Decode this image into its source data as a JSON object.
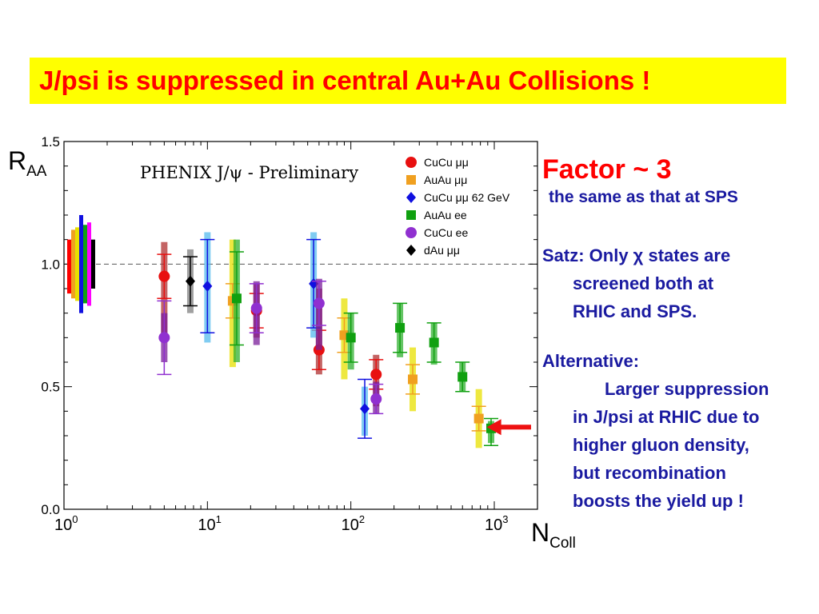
{
  "slide_title": "J/psi is suppressed in central Au+Au Collisions !",
  "panel": {
    "factor": "Factor ~ 3",
    "factor_sub": "the same as that at SPS",
    "satz_line1": "Satz: Only χ states are",
    "satz_line2": "screened both at",
    "satz_line3": "RHIC and SPS.",
    "alt_heading": "Alternative:",
    "alt_line1": "Larger suppression",
    "alt_line2": "in J/psi at RHIC due to",
    "alt_line3": "higher gluon density,",
    "alt_line4": "but recombination",
    "alt_line5": "boosts the yield up !"
  },
  "chart_data": {
    "type": "scatter",
    "title": "PHENIX J/ψ - Preliminary",
    "ylabel": "R",
    "ylabel_sub": "AA",
    "xlabel": "N",
    "xlabel_sub": "Coll",
    "xscale": "log",
    "xlim": [
      1,
      2000
    ],
    "ylim": [
      0,
      1.5
    ],
    "x_ticks": [
      {
        "value": 1,
        "base": "10",
        "exp": "0"
      },
      {
        "value": 10,
        "base": "10",
        "exp": "1"
      },
      {
        "value": 100,
        "base": "10",
        "exp": "2"
      },
      {
        "value": 1000,
        "base": "10",
        "exp": "3"
      }
    ],
    "y_ticks": [
      "0.0",
      "0.5",
      "1.0",
      "1.5"
    ],
    "y_tick_values": [
      0,
      0.5,
      1.0,
      1.5
    ],
    "reference_line": 1.0,
    "legend_position": "top-right",
    "series": [
      {
        "name": "CuCu μμ",
        "color": "#e81010",
        "marker": "circle",
        "syscolor": "#b03030",
        "points": [
          {
            "x": 5,
            "y": 0.95,
            "ylo": 0.86,
            "yhi": 1.04,
            "slo": 0.7,
            "shi": 1.09
          },
          {
            "x": 22,
            "y": 0.81,
            "ylo": 0.74,
            "yhi": 0.88,
            "slo": 0.7,
            "shi": 0.92
          },
          {
            "x": 60,
            "y": 0.65,
            "ylo": 0.57,
            "yhi": 0.73,
            "slo": 0.55,
            "shi": 0.9
          },
          {
            "x": 150,
            "y": 0.55,
            "ylo": 0.49,
            "yhi": 0.61,
            "slo": 0.42,
            "shi": 0.63
          }
        ]
      },
      {
        "name": "AuAu μμ",
        "color": "#f0a020",
        "marker": "square",
        "syscolor": "#e8e000",
        "points": [
          {
            "x": 15,
            "y": 0.85,
            "ylo": 0.78,
            "yhi": 0.92,
            "slo": 0.58,
            "shi": 1.1
          },
          {
            "x": 90,
            "y": 0.71,
            "ylo": 0.64,
            "yhi": 0.78,
            "slo": 0.53,
            "shi": 0.86
          },
          {
            "x": 270,
            "y": 0.53,
            "ylo": 0.47,
            "yhi": 0.59,
            "slo": 0.4,
            "shi": 0.66
          },
          {
            "x": 780,
            "y": 0.37,
            "ylo": 0.32,
            "yhi": 0.42,
            "slo": 0.25,
            "shi": 0.49
          }
        ]
      },
      {
        "name": "CuCu μμ 62 GeV",
        "color": "#1010e0",
        "marker": "diamond",
        "syscolor": "#55bbee",
        "points": [
          {
            "x": 10,
            "y": 0.91,
            "ylo": 0.72,
            "yhi": 1.1,
            "slo": 0.68,
            "shi": 1.13
          },
          {
            "x": 55,
            "y": 0.92,
            "ylo": 0.74,
            "yhi": 1.1,
            "slo": 0.7,
            "shi": 1.13
          },
          {
            "x": 125,
            "y": 0.41,
            "ylo": 0.29,
            "yhi": 0.53,
            "slo": 0.3,
            "shi": 0.5
          }
        ]
      },
      {
        "name": "AuAu ee",
        "color": "#10a010",
        "marker": "square",
        "syscolor": "#30b030",
        "points": [
          {
            "x": 16,
            "y": 0.86,
            "ylo": 0.67,
            "yhi": 1.05,
            "slo": 0.6,
            "shi": 1.1
          },
          {
            "x": 100,
            "y": 0.7,
            "ylo": 0.6,
            "yhi": 0.8,
            "slo": 0.57,
            "shi": 0.8
          },
          {
            "x": 220,
            "y": 0.74,
            "ylo": 0.64,
            "yhi": 0.84,
            "slo": 0.62,
            "shi": 0.84
          },
          {
            "x": 380,
            "y": 0.68,
            "ylo": 0.6,
            "yhi": 0.76,
            "slo": 0.59,
            "shi": 0.76
          },
          {
            "x": 600,
            "y": 0.54,
            "ylo": 0.48,
            "yhi": 0.6,
            "slo": 0.48,
            "shi": 0.6
          },
          {
            "x": 950,
            "y": 0.33,
            "ylo": 0.26,
            "yhi": 0.37,
            "slo": 0.27,
            "shi": 0.36
          }
        ]
      },
      {
        "name": "CuCu ee",
        "color": "#9030d0",
        "marker": "circle",
        "syscolor": "#7a1e9a",
        "points": [
          {
            "x": 5,
            "y": 0.7,
            "ylo": 0.55,
            "yhi": 0.85,
            "slo": 0.6,
            "shi": 0.8
          },
          {
            "x": 22,
            "y": 0.82,
            "ylo": 0.72,
            "yhi": 0.92,
            "slo": 0.67,
            "shi": 0.93
          },
          {
            "x": 60,
            "y": 0.84,
            "ylo": 0.75,
            "yhi": 0.93,
            "slo": 0.65,
            "shi": 0.94
          },
          {
            "x": 150,
            "y": 0.45,
            "ylo": 0.39,
            "yhi": 0.51,
            "slo": 0.39,
            "shi": 0.52
          }
        ]
      },
      {
        "name": "dAu μμ",
        "color": "#000000",
        "marker": "diamond",
        "syscolor": "#808080",
        "points": [
          {
            "x": 7.6,
            "y": 0.93,
            "ylo": 0.83,
            "yhi": 1.03,
            "slo": 0.8,
            "shi": 1.06
          }
        ]
      }
    ],
    "dAu_bands": [
      {
        "color": "#ff0000",
        "lo": 0.88,
        "hi": 1.1
      },
      {
        "color": "#f0a020",
        "lo": 0.86,
        "hi": 1.14
      },
      {
        "color": "#e8e000",
        "lo": 0.85,
        "hi": 1.15
      },
      {
        "color": "#1010e0",
        "lo": 0.8,
        "hi": 1.2
      },
      {
        "color": "#10a010",
        "lo": 0.84,
        "hi": 1.16
      },
      {
        "color": "#ff00ff",
        "lo": 0.83,
        "hi": 1.17
      },
      {
        "color": "#000000",
        "lo": 0.9,
        "hi": 1.1
      }
    ]
  }
}
